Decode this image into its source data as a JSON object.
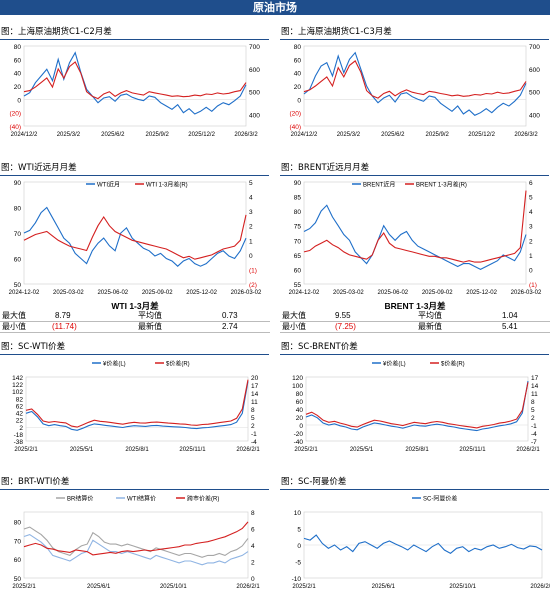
{
  "page": {
    "banner": "原油市场"
  },
  "panels": {
    "p1": {
      "title": "图：上海原油期货C1-C2月差"
    },
    "p2": {
      "title": "图：上海原油期货C1-C3月差"
    },
    "p3": {
      "title": "图：WTI近远月月差"
    },
    "p4": {
      "title": "图：BRENT近远月月差"
    },
    "p5": {
      "title": "图：SC-WTI价差"
    },
    "p6": {
      "title": "图：SC-BRENT价差"
    },
    "p7": {
      "title": "图：BRT-WTI价差"
    },
    "p8": {
      "title": "图：SC-阿曼价差"
    }
  },
  "stats": {
    "wti": {
      "title": "WTI 1-3月差",
      "max_label": "最大值",
      "max": "8.79",
      "min_label": "最小值",
      "min": "(11.74)",
      "avg_label": "平均值",
      "avg": "0.73",
      "last_label": "最新值",
      "last": "2.74"
    },
    "brent": {
      "title": "BRENT 1-3月差",
      "max_label": "最大值",
      "max": "9.55",
      "min_label": "最小值",
      "min": "(7.25)",
      "avg_label": "平均值",
      "avg": "1.04",
      "last_label": "最新值",
      "last": "5.41"
    }
  },
  "colors": {
    "blue": "#1f6fc9",
    "red": "#d42020",
    "gray": "#a6a6a6",
    "lightblue": "#8fb4e3",
    "banner": "#1f4e8c"
  },
  "chart_data": [
    {
      "id": "p1",
      "type": "line",
      "x_ticks": [
        "2024/12/2",
        "2025/3/2",
        "2025/6/2",
        "2025/9/2",
        "2025/12/2",
        "2026/3/2"
      ],
      "yleft_ticks": [
        "80",
        "60",
        "40",
        "20",
        "0",
        "(20)",
        "(40)"
      ],
      "ylim_left": [
        -40,
        80
      ],
      "yright_ticks": [
        "700",
        "600",
        "500",
        "400"
      ],
      "ylim_right": [
        350,
        700
      ],
      "series": [
        {
          "axis": "left",
          "color": "#1f6fc9",
          "values": [
            5,
            10,
            25,
            35,
            45,
            28,
            60,
            30,
            55,
            70,
            40,
            15,
            5,
            -5,
            2,
            4,
            -3,
            6,
            8,
            3,
            0,
            -2,
            5,
            3,
            -5,
            -10,
            -15,
            -8,
            -20,
            -14,
            -22,
            -18,
            -12,
            -18,
            -10,
            -5,
            -8,
            -2,
            5,
            22
          ]
        },
        {
          "axis": "right",
          "color": "#d42020",
          "values": [
            500,
            505,
            520,
            540,
            560,
            520,
            600,
            560,
            610,
            630,
            580,
            500,
            480,
            470,
            490,
            500,
            480,
            495,
            505,
            495,
            490,
            485,
            500,
            495,
            490,
            485,
            480,
            482,
            478,
            480,
            485,
            482,
            490,
            488,
            495,
            490,
            493,
            500,
            505,
            540
          ]
        }
      ]
    },
    {
      "id": "p2",
      "type": "line",
      "x_ticks": [
        "2024/12/2",
        "2025/3/2",
        "2025/6/2",
        "2025/9/2",
        "2025/12/2",
        "2026/3/2"
      ],
      "yleft_ticks": [
        "80",
        "60",
        "40",
        "20",
        "0",
        "(20)",
        "(40)"
      ],
      "ylim_left": [
        -40,
        80
      ],
      "yright_ticks": [
        "700",
        "600",
        "500",
        "400"
      ],
      "ylim_right": [
        350,
        700
      ],
      "series": [
        {
          "axis": "left",
          "color": "#1f6fc9",
          "values": [
            8,
            15,
            35,
            50,
            55,
            35,
            65,
            40,
            60,
            70,
            45,
            20,
            5,
            -5,
            2,
            6,
            -4,
            8,
            10,
            4,
            0,
            -3,
            5,
            3,
            -6,
            -12,
            -18,
            -10,
            -22,
            -16,
            -24,
            -20,
            -14,
            -20,
            -12,
            -6,
            -10,
            -3,
            6,
            24
          ]
        },
        {
          "axis": "right",
          "color": "#d42020",
          "values": [
            500,
            508,
            525,
            545,
            565,
            525,
            605,
            565,
            615,
            635,
            585,
            505,
            482,
            472,
            492,
            502,
            482,
            498,
            508,
            498,
            492,
            488,
            502,
            498,
            492,
            488,
            482,
            485,
            480,
            482,
            488,
            485,
            492,
            490,
            498,
            492,
            495,
            502,
            508,
            545
          ]
        }
      ]
    },
    {
      "id": "p3",
      "type": "line",
      "x_ticks": [
        "2024-12-02",
        "2025-03-02",
        "2025-06-02",
        "2025-09-02",
        "2025-12-02",
        "2026-03-02"
      ],
      "yleft_ticks": [
        "90",
        "80",
        "70",
        "60",
        "50"
      ],
      "ylim_left": [
        50,
        90
      ],
      "yright_ticks": [
        "5",
        "4",
        "3",
        "2",
        "1",
        "0",
        "(1)",
        "(2)"
      ],
      "ylim_right": [
        -2,
        5
      ],
      "legend": [
        "WTI近月",
        "WTI 1-3月差(R)"
      ],
      "series": [
        {
          "name": "WTI近月",
          "axis": "left",
          "color": "#1f6fc9",
          "values": [
            70,
            71,
            74,
            78,
            80,
            76,
            72,
            68,
            66,
            62,
            60,
            58,
            63,
            66,
            68,
            65,
            63,
            70,
            72,
            68,
            66,
            64,
            63,
            61,
            62,
            60,
            59,
            57,
            59,
            60,
            58,
            57,
            58,
            60,
            62,
            63,
            61,
            60,
            63,
            68
          ]
        },
        {
          "name": "WTI 1-3月差(R)",
          "axis": "right",
          "color": "#d42020",
          "values": [
            1,
            1.2,
            1.4,
            1.5,
            1.6,
            1.3,
            1.0,
            0.8,
            0.6,
            0.5,
            0.4,
            0.3,
            1.2,
            2.0,
            2.6,
            2.0,
            1.6,
            1.4,
            1.2,
            1.0,
            0.9,
            0.8,
            0.7,
            0.6,
            0.5,
            0.4,
            0.2,
            0.0,
            -0.2,
            -0.1,
            -0.3,
            -0.2,
            -0.1,
            0.0,
            0.2,
            0.4,
            0.5,
            0.6,
            1.0,
            2.74
          ]
        }
      ]
    },
    {
      "id": "p4",
      "type": "line",
      "x_ticks": [
        "2024-12-02",
        "2025-03-02",
        "2025-06-02",
        "2025-09-02",
        "2025-12-02",
        "2026-03-02"
      ],
      "yleft_ticks": [
        "90",
        "85",
        "80",
        "75",
        "70",
        "65",
        "60",
        "55"
      ],
      "ylim_left": [
        55,
        90
      ],
      "yright_ticks": [
        "6",
        "5",
        "4",
        "3",
        "2",
        "1",
        "0",
        "(1)"
      ],
      "ylim_right": [
        -1,
        6
      ],
      "legend": [
        "BRENT近月",
        "BRENT 1-3月差(R)"
      ],
      "series": [
        {
          "name": "BRENT近月",
          "axis": "left",
          "color": "#1f6fc9",
          "values": [
            73,
            74,
            76,
            80,
            82,
            78,
            75,
            72,
            70,
            66,
            64,
            62,
            65,
            70,
            75,
            72,
            70,
            72,
            73,
            70,
            68,
            67,
            66,
            65,
            64,
            63,
            62,
            61,
            62,
            62,
            61,
            60,
            61,
            62,
            63,
            65,
            64,
            63,
            66,
            72
          ]
        },
        {
          "name": "BRENT 1-3月差(R)",
          "axis": "right",
          "color": "#d42020",
          "values": [
            1.2,
            1.3,
            1.6,
            1.8,
            2.0,
            1.7,
            1.5,
            1.2,
            1.0,
            0.9,
            0.8,
            0.7,
            1.0,
            2.0,
            2.5,
            1.8,
            1.5,
            1.4,
            1.3,
            1.2,
            1.1,
            1.0,
            0.9,
            0.9,
            0.8,
            0.8,
            0.7,
            0.6,
            0.5,
            0.6,
            0.5,
            0.5,
            0.6,
            0.7,
            0.8,
            0.9,
            1.0,
            1.1,
            1.5,
            5.41
          ]
        }
      ]
    },
    {
      "id": "p5",
      "type": "line",
      "x_ticks": [
        "2025/2/1",
        "2025/5/1",
        "2025/8/1",
        "2025/11/1",
        "2026/2/1"
      ],
      "yleft_ticks": [
        "142",
        "122",
        "102",
        "82",
        "62",
        "42",
        "22",
        "2",
        "-18",
        "-38"
      ],
      "ylim_left": [
        -38,
        142
      ],
      "yright_ticks": [
        "20",
        "17",
        "14",
        "11",
        "8",
        "5",
        "2",
        "-1",
        "-4"
      ],
      "ylim_right": [
        -4,
        20
      ],
      "legend": [
        "¥价差(L)",
        "$价差(R)"
      ],
      "series": [
        {
          "name": "¥价差(L)",
          "axis": "left",
          "color": "#1f6fc9",
          "values": [
            40,
            45,
            30,
            10,
            5,
            8,
            5,
            3,
            -5,
            -8,
            -2,
            5,
            10,
            8,
            6,
            4,
            2,
            0,
            3,
            5,
            4,
            3,
            5,
            6,
            4,
            3,
            2,
            1,
            0,
            -2,
            -3,
            -1,
            0,
            2,
            4,
            6,
            8,
            15,
            40,
            130
          ]
        },
        {
          "name": "$价差(R)",
          "axis": "right",
          "color": "#d42020",
          "values": [
            7.5,
            8,
            6,
            3.5,
            3,
            3.3,
            3,
            2.8,
            1.6,
            1.2,
            2.1,
            3,
            3.8,
            3.4,
            3.2,
            2.9,
            2.6,
            2.3,
            2.7,
            3,
            2.8,
            2.7,
            3,
            3.1,
            2.9,
            2.7,
            2.6,
            2.4,
            2.3,
            2,
            1.9,
            2.2,
            2.3,
            2.6,
            2.9,
            3.2,
            3.5,
            4.5,
            8,
            19
          ]
        }
      ]
    },
    {
      "id": "p6",
      "type": "line",
      "x_ticks": [
        "2025/2/1",
        "2025/5/1",
        "2025/8/1",
        "2025/11/1",
        "2026/2/1"
      ],
      "yleft_ticks": [
        "120",
        "100",
        "80",
        "60",
        "40",
        "20",
        "0",
        "-20",
        "-40"
      ],
      "ylim_left": [
        -40,
        120
      ],
      "yright_ticks": [
        "17",
        "14",
        "11",
        "8",
        "5",
        "2",
        "-1",
        "-4",
        "-7"
      ],
      "ylim_right": [
        -7,
        17
      ],
      "legend": [
        "¥价差(L)",
        "$价差(R)"
      ],
      "series": [
        {
          "name": "¥价差(L)",
          "axis": "left",
          "color": "#1f6fc9",
          "values": [
            20,
            25,
            18,
            5,
            0,
            3,
            -2,
            -5,
            -10,
            -12,
            -5,
            0,
            5,
            3,
            0,
            -3,
            -5,
            -8,
            -4,
            0,
            -2,
            -3,
            0,
            2,
            0,
            -3,
            -5,
            -8,
            -10,
            -12,
            -14,
            -10,
            -8,
            -5,
            -2,
            0,
            3,
            8,
            30,
            110
          ]
        },
        {
          "name": "$价差(R)",
          "axis": "right",
          "color": "#d42020",
          "values": [
            3,
            3.8,
            2.6,
            0.8,
            0,
            0.4,
            -0.3,
            -0.8,
            -1.5,
            -1.8,
            -0.8,
            0,
            0.8,
            0.5,
            0,
            -0.5,
            -0.8,
            -1.2,
            -0.6,
            0,
            -0.3,
            -0.5,
            0,
            0.3,
            0,
            -0.5,
            -0.8,
            -1.2,
            -1.5,
            -1.8,
            -2.1,
            -1.5,
            -1.2,
            -0.8,
            -0.3,
            0,
            0.5,
            1.2,
            4.5,
            15
          ]
        }
      ]
    },
    {
      "id": "p7",
      "type": "line",
      "x_ticks": [
        "2025/2/1",
        "2025/6/1",
        "2025/10/1",
        "2026/2/1"
      ],
      "yleft_ticks": [
        "80",
        "70",
        "60",
        "50"
      ],
      "ylim_left": [
        50,
        85
      ],
      "yright_ticks": [
        "8",
        "6",
        "4",
        "2",
        "0"
      ],
      "ylim_right": [
        0,
        8
      ],
      "legend": [
        "BR结算价",
        "WTI结算价",
        "跨市价差(R)"
      ],
      "series": [
        {
          "name": "BR结算价",
          "axis": "left",
          "color": "#a6a6a6",
          "values": [
            76,
            77,
            75,
            73,
            70,
            66,
            64,
            63,
            62,
            65,
            67,
            68,
            74,
            72,
            69,
            68,
            68,
            67,
            68,
            67,
            66,
            65,
            64,
            66,
            65,
            64,
            63,
            62,
            63,
            63,
            62,
            61,
            62,
            62,
            63,
            62,
            64,
            65,
            67,
            71
          ]
        },
        {
          "name": "WTI结算价",
          "axis": "left",
          "color": "#8fb4e3",
          "values": [
            72,
            73,
            71,
            69,
            66,
            62,
            61,
            60,
            59,
            61,
            63,
            64,
            70,
            68,
            66,
            64,
            64,
            63,
            64,
            63,
            62,
            61,
            60,
            62,
            61,
            60,
            59,
            58,
            59,
            59,
            58,
            57,
            58,
            58,
            59,
            58,
            60,
            61,
            62,
            64
          ]
        },
        {
          "name": "跨市价差(R)",
          "axis": "right",
          "color": "#d42020",
          "values": [
            3.8,
            4,
            4.2,
            4,
            3.6,
            3.5,
            3.3,
            3.2,
            3.1,
            3.4,
            3.3,
            3.2,
            2.8,
            2.9,
            3.0,
            3.1,
            3.0,
            3.2,
            3.3,
            3.2,
            3.3,
            3.4,
            3.3,
            3.4,
            3.5,
            3.6,
            3.7,
            3.8,
            4.0,
            4.0,
            4.2,
            4.3,
            4.4,
            4.6,
            4.8,
            5.0,
            5.3,
            5.6,
            6.0,
            6.8
          ]
        }
      ]
    },
    {
      "id": "p8",
      "type": "line",
      "x_ticks": [
        "2025/2/1",
        "2025/6/1",
        "2025/10/1",
        "2026/2/1"
      ],
      "yleft_ticks": [
        "10",
        "5",
        "0",
        "-5",
        "-10"
      ],
      "ylim_left": [
        -10,
        10
      ],
      "legend": [
        "SC-阿曼价差"
      ],
      "series": [
        {
          "name": "SC-阿曼价差",
          "axis": "left",
          "color": "#1f6fc9",
          "values": [
            2,
            1.5,
            3,
            0.5,
            -1,
            0,
            -1.5,
            -0.5,
            -2,
            0.5,
            1,
            0,
            -1,
            0.5,
            1.2,
            0.3,
            -0.5,
            -1.5,
            0,
            -1,
            -2,
            -0.5,
            0.5,
            -1.5,
            -2.5,
            -1,
            -0.5,
            -2,
            -1,
            -1.5,
            -0.5,
            0,
            -1,
            -0.5,
            0.2,
            -0.8,
            -1.2,
            -0.3,
            -0.5,
            -1.5
          ]
        }
      ]
    }
  ]
}
